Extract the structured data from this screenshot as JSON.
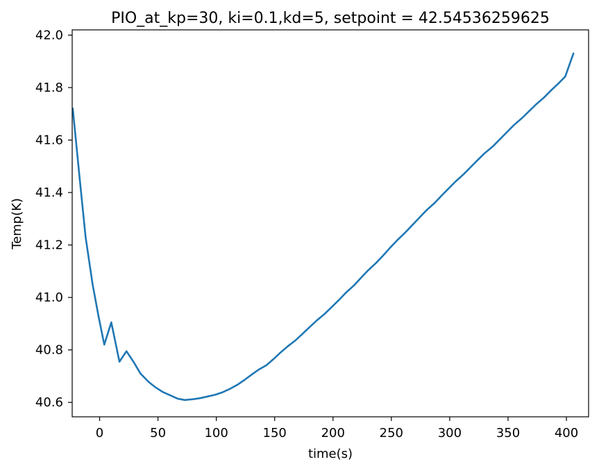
{
  "chart_data": {
    "type": "line",
    "title": "PIO_at_kp=30, ki=0.1,kd=5, setpoint = 42.54536259625",
    "xlabel": "time(s)",
    "ylabel": "Temp(K)",
    "xlim": [
      -23.5,
      419
    ],
    "ylim": [
      40.545,
      42.02
    ],
    "xticks": [
      0,
      50,
      100,
      150,
      200,
      250,
      300,
      350,
      400
    ],
    "yticks": [
      40.6,
      40.8,
      41.0,
      41.2,
      41.4,
      41.6,
      41.8,
      42.0
    ],
    "xtick_labels": [
      "0",
      "50",
      "100",
      "150",
      "200",
      "250",
      "300",
      "350",
      "400"
    ],
    "ytick_labels": [
      "40.6",
      "40.8",
      "41.0",
      "41.2",
      "41.4",
      "41.6",
      "41.8",
      "42.0"
    ],
    "grid": false,
    "series": [
      {
        "color": "#1f77b4",
        "x": [
          -23,
          -17,
          -12,
          -6,
          -1,
          4,
          10,
          17,
          23,
          29,
          35,
          42,
          48,
          54,
          61,
          67,
          73,
          80,
          86,
          92,
          99,
          105,
          111,
          118,
          124,
          130,
          136,
          143,
          149,
          155,
          161,
          168,
          174,
          180,
          186,
          193,
          199,
          205,
          211,
          218,
          224,
          230,
          237,
          243,
          249,
          255,
          262,
          268,
          274,
          280,
          287,
          293,
          299,
          305,
          312,
          318,
          324,
          330,
          337,
          343,
          349,
          355,
          362,
          368,
          374,
          381,
          387,
          393,
          399,
          406
        ],
        "y": [
          41.72,
          41.45,
          41.23,
          41.05,
          40.93,
          40.82,
          40.905,
          40.755,
          40.795,
          40.755,
          40.71,
          40.678,
          40.657,
          40.64,
          40.626,
          40.614,
          40.609,
          40.612,
          40.616,
          40.622,
          40.629,
          40.638,
          40.65,
          40.667,
          40.685,
          40.705,
          40.724,
          40.742,
          40.765,
          40.79,
          40.813,
          40.837,
          40.862,
          40.887,
          40.912,
          40.938,
          40.964,
          40.99,
          41.018,
          41.046,
          41.075,
          41.103,
          41.132,
          41.16,
          41.19,
          41.218,
          41.248,
          41.276,
          41.304,
          41.332,
          41.36,
          41.388,
          41.415,
          41.442,
          41.47,
          41.497,
          41.524,
          41.55,
          41.576,
          41.603,
          41.63,
          41.657,
          41.684,
          41.71,
          41.736,
          41.763,
          41.79,
          41.815,
          41.842,
          41.93
        ]
      }
    ]
  }
}
